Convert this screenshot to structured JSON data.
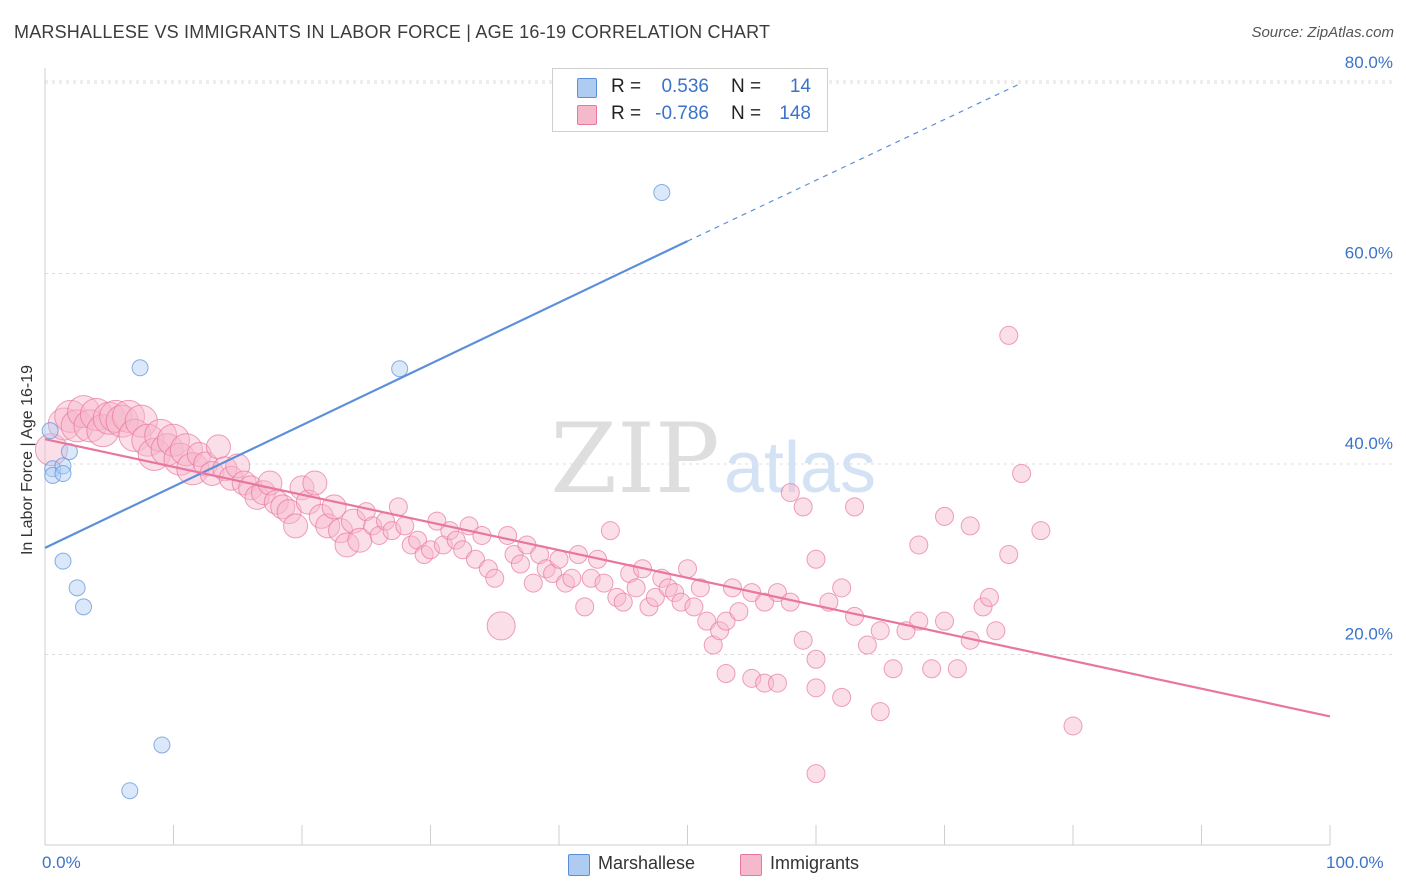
{
  "title": "MARSHALLESE VS IMMIGRANTS IN LABOR FORCE | AGE 16-19 CORRELATION CHART",
  "source": "Source: ZipAtlas.com",
  "watermark": {
    "zip": "ZIP",
    "atlas": "atlas"
  },
  "stats": [
    {
      "r_label": "R =",
      "r_value": "0.536",
      "n_label": "N =",
      "n_value": "14",
      "color": "#aecbf2"
    },
    {
      "r_label": "R =",
      "r_value": "-0.786",
      "n_label": "N =",
      "n_value": "148",
      "color": "#f6b8cb"
    }
  ],
  "legend": [
    {
      "label": "Marshallese",
      "color": "#aecbf2"
    },
    {
      "label": "Immigrants",
      "color": "#f6b8cb"
    }
  ],
  "chart_data": {
    "type": "scatter",
    "title": "MARSHALLESE VS IMMIGRANTS IN LABOR FORCE | AGE 16-19 CORRELATION CHART",
    "xlabel": "",
    "ylabel": "In Labor Force | Age 16-19",
    "xlim": [
      0,
      100
    ],
    "ylim": [
      0,
      80
    ],
    "x_tick_labels": [
      "0.0%",
      "100.0%"
    ],
    "y_ticks": [
      20,
      40,
      60,
      80
    ],
    "y_tick_labels": [
      "20.0%",
      "40.0%",
      "60.0%",
      "80.0%"
    ],
    "grid": true,
    "series": [
      {
        "name": "Marshallese",
        "color": "#5b8fd9",
        "fill": "#aecbf2",
        "trend": {
          "x0": 0,
          "y0": 31.2,
          "x1": 50,
          "y1": 63.4,
          "dashed_to_x": 76,
          "dashed_to_y": 80
        },
        "points": [
          [
            0.4,
            43.5
          ],
          [
            0.6,
            39.5
          ],
          [
            0.6,
            38.8
          ],
          [
            1.4,
            39.8
          ],
          [
            1.4,
            39.0
          ],
          [
            1.9,
            41.3
          ],
          [
            1.4,
            29.8
          ],
          [
            2.5,
            27.0
          ],
          [
            3.0,
            25.0
          ],
          [
            7.4,
            50.1
          ],
          [
            27.6,
            50.0
          ],
          [
            48.0,
            68.5
          ],
          [
            9.1,
            10.5
          ],
          [
            6.6,
            5.7
          ]
        ]
      },
      {
        "name": "Immigrants",
        "color": "#e8769f",
        "fill": "#f6b8cb",
        "trend": {
          "x0": 0,
          "y0": 42.6,
          "x1": 100,
          "y1": 13.5
        },
        "points": [
          [
            0.5,
            41.5
          ],
          [
            1.5,
            44.2
          ],
          [
            2.0,
            45.0
          ],
          [
            2.5,
            44.0
          ],
          [
            3.0,
            45.5
          ],
          [
            3.5,
            44.0
          ],
          [
            4.0,
            45.2
          ],
          [
            4.5,
            43.5
          ],
          [
            5.0,
            44.8
          ],
          [
            5.5,
            45.0
          ],
          [
            6.0,
            44.5
          ],
          [
            6.5,
            45.0
          ],
          [
            7.0,
            43.0
          ],
          [
            7.5,
            44.5
          ],
          [
            8.0,
            42.5
          ],
          [
            8.5,
            41.0
          ],
          [
            9.0,
            43.0
          ],
          [
            9.5,
            41.5
          ],
          [
            10.0,
            42.5
          ],
          [
            10.5,
            40.5
          ],
          [
            11.0,
            41.5
          ],
          [
            11.5,
            39.5
          ],
          [
            12.0,
            41.0
          ],
          [
            12.5,
            40.0
          ],
          [
            13.0,
            39.0
          ],
          [
            13.5,
            41.8
          ],
          [
            14.0,
            39.5
          ],
          [
            14.5,
            38.5
          ],
          [
            15.0,
            39.8
          ],
          [
            15.5,
            38.0
          ],
          [
            16.0,
            37.5
          ],
          [
            16.5,
            36.5
          ],
          [
            17.0,
            37.0
          ],
          [
            17.5,
            38.0
          ],
          [
            18.0,
            36.0
          ],
          [
            18.5,
            35.5
          ],
          [
            19.0,
            35.0
          ],
          [
            19.5,
            33.5
          ],
          [
            20.0,
            37.5
          ],
          [
            20.5,
            36.0
          ],
          [
            21.0,
            38.0
          ],
          [
            21.5,
            34.5
          ],
          [
            22.0,
            33.5
          ],
          [
            22.5,
            35.5
          ],
          [
            23.0,
            33.0
          ],
          [
            23.5,
            31.5
          ],
          [
            24.0,
            34.0
          ],
          [
            24.5,
            32.0
          ],
          [
            25.0,
            35.0
          ],
          [
            25.5,
            33.5
          ],
          [
            26.0,
            32.5
          ],
          [
            26.5,
            34.0
          ],
          [
            27.0,
            33.0
          ],
          [
            27.5,
            35.5
          ],
          [
            28.0,
            33.5
          ],
          [
            28.5,
            31.5
          ],
          [
            29.0,
            32.0
          ],
          [
            29.5,
            30.5
          ],
          [
            30.0,
            31.0
          ],
          [
            30.5,
            34.0
          ],
          [
            31.0,
            31.5
          ],
          [
            31.5,
            33.0
          ],
          [
            32.0,
            32.0
          ],
          [
            32.5,
            31.0
          ],
          [
            33.0,
            33.5
          ],
          [
            33.5,
            30.0
          ],
          [
            34.0,
            32.5
          ],
          [
            34.5,
            29.0
          ],
          [
            35.0,
            28.0
          ],
          [
            35.5,
            23.0
          ],
          [
            36.0,
            32.5
          ],
          [
            36.5,
            30.5
          ],
          [
            37.0,
            29.5
          ],
          [
            37.5,
            31.5
          ],
          [
            38.0,
            27.5
          ],
          [
            38.5,
            30.5
          ],
          [
            39.0,
            29.0
          ],
          [
            39.5,
            28.5
          ],
          [
            40.0,
            30.0
          ],
          [
            40.5,
            27.5
          ],
          [
            41.0,
            28.0
          ],
          [
            41.5,
            30.5
          ],
          [
            42.0,
            25.0
          ],
          [
            42.5,
            28.0
          ],
          [
            43.0,
            30.0
          ],
          [
            43.5,
            27.5
          ],
          [
            44.0,
            33.0
          ],
          [
            44.5,
            26.0
          ],
          [
            45.0,
            25.5
          ],
          [
            45.5,
            28.5
          ],
          [
            46.0,
            27.0
          ],
          [
            46.5,
            29.0
          ],
          [
            47.0,
            25.0
          ],
          [
            47.5,
            26.0
          ],
          [
            48.0,
            28.0
          ],
          [
            48.5,
            27.0
          ],
          [
            49.0,
            26.5
          ],
          [
            49.5,
            25.5
          ],
          [
            50.0,
            29.0
          ],
          [
            50.5,
            25.0
          ],
          [
            51.0,
            27.0
          ],
          [
            51.5,
            23.5
          ],
          [
            52.0,
            21.0
          ],
          [
            52.5,
            22.5
          ],
          [
            53.0,
            23.5
          ],
          [
            53.5,
            27.0
          ],
          [
            54.0,
            24.5
          ],
          [
            55.0,
            26.5
          ],
          [
            56.0,
            25.5
          ],
          [
            57.0,
            26.5
          ],
          [
            58.0,
            25.5
          ],
          [
            59.0,
            21.5
          ],
          [
            60.0,
            19.5
          ],
          [
            61.0,
            25.5
          ],
          [
            62.0,
            27.0
          ],
          [
            63.0,
            24.0
          ],
          [
            64.0,
            21.0
          ],
          [
            65.0,
            22.5
          ],
          [
            66.0,
            18.5
          ],
          [
            67.0,
            22.5
          ],
          [
            68.0,
            23.5
          ],
          [
            69.0,
            18.5
          ],
          [
            70.0,
            23.5
          ],
          [
            71.0,
            18.5
          ],
          [
            72.0,
            21.5
          ],
          [
            73.0,
            25.0
          ],
          [
            73.5,
            26.0
          ],
          [
            74.0,
            22.5
          ],
          [
            75.0,
            53.5
          ],
          [
            76.0,
            39.0
          ],
          [
            77.5,
            33.0
          ],
          [
            80.0,
            12.5
          ],
          [
            75.0,
            30.5
          ],
          [
            72.0,
            33.5
          ],
          [
            60.0,
            30.0
          ],
          [
            63.0,
            35.5
          ],
          [
            58.0,
            37.0
          ],
          [
            59.0,
            35.5
          ],
          [
            55.0,
            17.5
          ],
          [
            56.0,
            17.0
          ],
          [
            57.0,
            17.0
          ],
          [
            60.0,
            16.5
          ],
          [
            62.0,
            15.5
          ],
          [
            65.0,
            14.0
          ],
          [
            60.0,
            7.5
          ],
          [
            53.0,
            18.0
          ],
          [
            68.0,
            31.5
          ],
          [
            70.0,
            34.5
          ]
        ]
      }
    ]
  }
}
